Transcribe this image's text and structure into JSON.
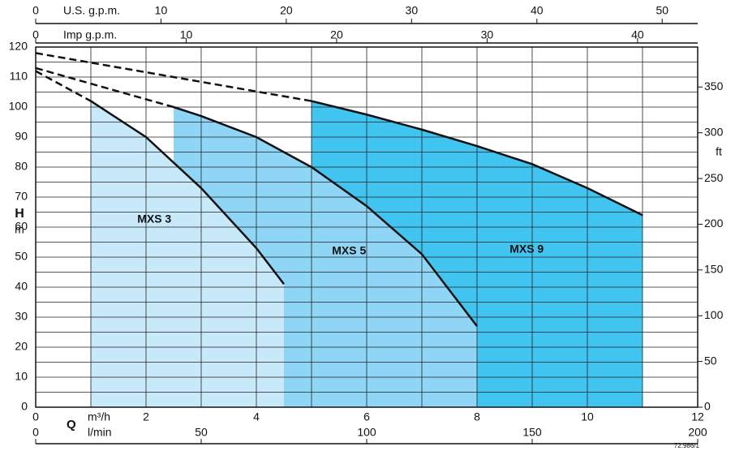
{
  "chart_data": {
    "type": "area",
    "x_symbol": "Q",
    "xlabel": "m³/h",
    "ylabel": "H",
    "yunit": "m",
    "xlim": [
      0,
      12
    ],
    "xticks": [
      0,
      2,
      4,
      6,
      8,
      10,
      12
    ],
    "xgrid": [
      0,
      1,
      2,
      3,
      4,
      5,
      6,
      7,
      8,
      9,
      10,
      11,
      12
    ],
    "ylim": [
      0,
      120
    ],
    "yticks": [
      0,
      10,
      20,
      30,
      40,
      50,
      60,
      70,
      80,
      90,
      100,
      110,
      120
    ],
    "ygrid": [
      0,
      5,
      10,
      15,
      20,
      25,
      30,
      35,
      40,
      45,
      50,
      55,
      60,
      65,
      70,
      75,
      80,
      85,
      90,
      95,
      100,
      105,
      110,
      115,
      120
    ],
    "grid": true,
    "y2label": "ft",
    "y2lim": [
      0,
      393.7
    ],
    "y2ticks": [
      0,
      50,
      100,
      150,
      200,
      250,
      300,
      350
    ],
    "x2": {
      "label": "l/min",
      "lim": [
        0,
        200
      ],
      "ticks": [
        0,
        50,
        100,
        150,
        200
      ]
    },
    "x_top": {
      "label": "U.S. g.p.m.",
      "lim": [
        0,
        52.834
      ],
      "ticks": [
        0,
        10,
        20,
        30,
        40,
        50
      ]
    },
    "x_top2": {
      "label": "Imp g.p.m.",
      "lim": [
        0,
        43.994
      ],
      "ticks": [
        0,
        10,
        20,
        30,
        40
      ]
    },
    "series": [
      {
        "name": "MXS 9",
        "color": "#42c4f0",
        "x": [
          0,
          5,
          6,
          7,
          8,
          9,
          10,
          11
        ],
        "values": [
          118,
          102,
          97.5,
          92.5,
          87,
          81,
          73,
          64
        ]
      },
      {
        "name": "MXS 5",
        "color": "#8fd5f5",
        "x": [
          0,
          2.5,
          3,
          4,
          5,
          6,
          7,
          7.5,
          8
        ],
        "values": [
          113,
          100,
          97,
          90,
          80,
          67,
          51,
          39,
          27
        ]
      },
      {
        "name": "MXS 3",
        "color": "#c8e9f9",
        "x": [
          0,
          1,
          2,
          3,
          4,
          4.5
        ],
        "values": [
          112,
          102,
          90,
          73,
          53,
          41
        ]
      }
    ],
    "code": "72.986/1"
  }
}
